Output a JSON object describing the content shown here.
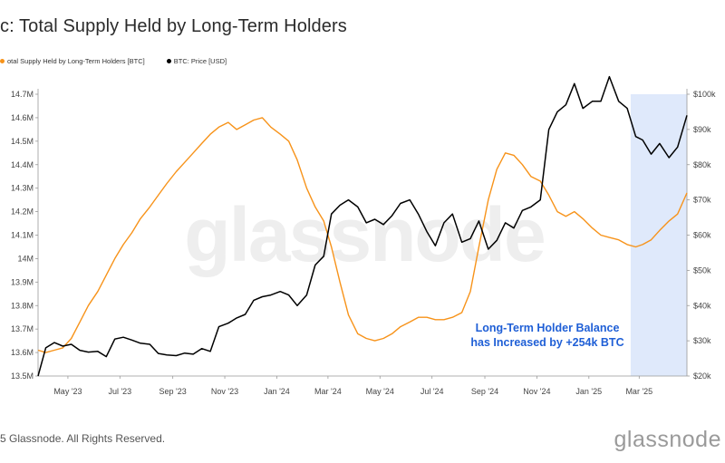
{
  "title": "c: Total Supply Held by Long-Term Holders",
  "legend": [
    {
      "label": "otal Supply Held by Long-Term Holders [BTC]",
      "color": "#f7931a"
    },
    {
      "label": "BTC: Price [USD]",
      "color": "#000000"
    }
  ],
  "footer": "5 Glassnode. All Rights Reserved.",
  "brand": "glassnode",
  "watermark": "glassnode",
  "annotation": {
    "line1": "Long-Term Holder Balance",
    "line2": "has Increased by +254k BTC"
  },
  "colors": {
    "lth": "#f7931a",
    "price": "#000000",
    "highlight": "#dfe9fb",
    "annotation": "#1f5fd6"
  },
  "chart_data": {
    "type": "line",
    "x_ticks": [
      "May '23",
      "Jul '23",
      "Sep '23",
      "Nov '23",
      "Jan '24",
      "Mar '24",
      "May '24",
      "Jul '24",
      "Sep '24",
      "Nov '24",
      "Jan '25",
      "Mar '25"
    ],
    "y_left_ticks": [
      "13.5M",
      "13.6M",
      "13.7M",
      "13.8M",
      "13.9M",
      "14M",
      "14.1M",
      "14.2M",
      "14.3M",
      "14.4M",
      "14.5M",
      "14.6M",
      "14.7M"
    ],
    "y_right_ticks": [
      "$20k",
      "$30k",
      "$40k",
      "$50k",
      "$60k",
      "$70k",
      "$80k",
      "$90k",
      "$100k"
    ],
    "y_left_range": [
      13.5,
      14.7
    ],
    "y_right_range": [
      20,
      100
    ],
    "x_range": [
      "2023-03-27",
      "2025-04-26"
    ],
    "highlight_range": [
      "2025-02-19",
      "2025-04-26"
    ],
    "series": [
      {
        "name": "otal Supply Held by Long-Term Holders [BTC]",
        "axis": "left",
        "unit": "M BTC",
        "x": [
          "2023-03-27",
          "2023-04-05",
          "2023-04-15",
          "2023-04-25",
          "2023-05-05",
          "2023-05-15",
          "2023-05-25",
          "2023-06-05",
          "2023-06-15",
          "2023-06-25",
          "2023-07-05",
          "2023-07-15",
          "2023-07-25",
          "2023-08-05",
          "2023-08-15",
          "2023-08-25",
          "2023-09-05",
          "2023-09-15",
          "2023-09-25",
          "2023-10-05",
          "2023-10-15",
          "2023-10-25",
          "2023-11-05",
          "2023-11-15",
          "2023-11-25",
          "2023-12-05",
          "2023-12-15",
          "2023-12-25",
          "2024-01-05",
          "2024-01-15",
          "2024-01-25",
          "2024-02-05",
          "2024-02-15",
          "2024-02-25",
          "2024-03-05",
          "2024-03-15",
          "2024-03-25",
          "2024-04-05",
          "2024-04-15",
          "2024-04-25",
          "2024-05-05",
          "2024-05-15",
          "2024-05-25",
          "2024-06-05",
          "2024-06-15",
          "2024-06-25",
          "2024-07-05",
          "2024-07-15",
          "2024-07-25",
          "2024-08-05",
          "2024-08-15",
          "2024-08-25",
          "2024-09-05",
          "2024-09-15",
          "2024-09-25",
          "2024-10-05",
          "2024-10-15",
          "2024-10-25",
          "2024-11-05",
          "2024-11-15",
          "2024-11-25",
          "2024-12-05",
          "2024-12-15",
          "2024-12-25",
          "2025-01-05",
          "2025-01-15",
          "2025-01-25",
          "2025-02-05",
          "2025-02-15",
          "2025-02-25",
          "2025-03-05",
          "2025-03-15",
          "2025-03-25",
          "2025-04-05",
          "2025-04-15",
          "2025-04-26"
        ],
        "values": [
          13.61,
          13.6,
          13.61,
          13.62,
          13.66,
          13.73,
          13.8,
          13.86,
          13.93,
          14.0,
          14.06,
          14.11,
          14.17,
          14.22,
          14.27,
          14.32,
          14.37,
          14.41,
          14.45,
          14.49,
          14.53,
          14.56,
          14.58,
          14.55,
          14.57,
          14.59,
          14.6,
          14.56,
          14.53,
          14.5,
          14.42,
          14.3,
          14.22,
          14.16,
          14.05,
          13.9,
          13.76,
          13.68,
          13.66,
          13.65,
          13.66,
          13.68,
          13.71,
          13.73,
          13.75,
          13.75,
          13.74,
          13.74,
          13.75,
          13.77,
          13.86,
          14.05,
          14.25,
          14.38,
          14.45,
          14.44,
          14.4,
          14.35,
          14.33,
          14.27,
          14.2,
          14.18,
          14.2,
          14.17,
          14.13,
          14.1,
          14.09,
          14.08,
          14.06,
          14.05,
          14.06,
          14.08,
          14.12,
          14.16,
          14.19,
          14.28
        ]
      },
      {
        "name": "BTC: Price [USD]",
        "axis": "right",
        "unit": "k USD",
        "x": [
          "2023-03-27",
          "2023-04-05",
          "2023-04-15",
          "2023-04-25",
          "2023-05-05",
          "2023-05-15",
          "2023-05-25",
          "2023-06-05",
          "2023-06-15",
          "2023-06-25",
          "2023-07-05",
          "2023-07-15",
          "2023-07-25",
          "2023-08-05",
          "2023-08-15",
          "2023-08-25",
          "2023-09-05",
          "2023-09-15",
          "2023-09-25",
          "2023-10-05",
          "2023-10-15",
          "2023-10-25",
          "2023-11-05",
          "2023-11-15",
          "2023-11-25",
          "2023-12-05",
          "2023-12-15",
          "2023-12-25",
          "2024-01-05",
          "2024-01-15",
          "2024-01-25",
          "2024-02-05",
          "2024-02-15",
          "2024-02-25",
          "2024-03-05",
          "2024-03-15",
          "2024-03-25",
          "2024-04-05",
          "2024-04-15",
          "2024-04-25",
          "2024-05-05",
          "2024-05-15",
          "2024-05-25",
          "2024-06-05",
          "2024-06-15",
          "2024-06-25",
          "2024-07-05",
          "2024-07-15",
          "2024-07-25",
          "2024-08-05",
          "2024-08-15",
          "2024-08-25",
          "2024-09-05",
          "2024-09-15",
          "2024-09-25",
          "2024-10-05",
          "2024-10-15",
          "2024-10-25",
          "2024-11-05",
          "2024-11-15",
          "2024-11-25",
          "2024-12-05",
          "2024-12-15",
          "2024-12-25",
          "2025-01-05",
          "2025-01-15",
          "2025-01-25",
          "2025-02-05",
          "2025-02-15",
          "2025-02-25",
          "2025-03-05",
          "2025-03-15",
          "2025-03-25",
          "2025-04-05",
          "2025-04-15",
          "2025-04-26"
        ],
        "values": [
          20.0,
          28.0,
          29.5,
          28.5,
          29.0,
          27.3,
          26.8,
          27.0,
          25.5,
          30.5,
          31.0,
          30.2,
          29.3,
          29.0,
          26.4,
          26.0,
          25.8,
          26.5,
          26.2,
          27.8,
          27.0,
          34.0,
          35.0,
          36.5,
          37.5,
          41.5,
          42.5,
          43.0,
          44.0,
          43.0,
          40.0,
          43.0,
          51.5,
          54.0,
          66.0,
          68.5,
          70.0,
          68.0,
          63.5,
          64.5,
          63.0,
          65.5,
          69.0,
          70.0,
          66.0,
          61.0,
          57.0,
          63.5,
          66.0,
          58.0,
          59.0,
          64.0,
          56.0,
          58.5,
          63.5,
          62.0,
          67.0,
          68.0,
          70.0,
          90.0,
          95.0,
          97.0,
          103.0,
          96.0,
          98.0,
          98.0,
          105.0,
          98.0,
          96.0,
          88.0,
          87.0,
          83.0,
          86.0,
          82.0,
          85.0,
          94.0
        ]
      }
    ]
  }
}
